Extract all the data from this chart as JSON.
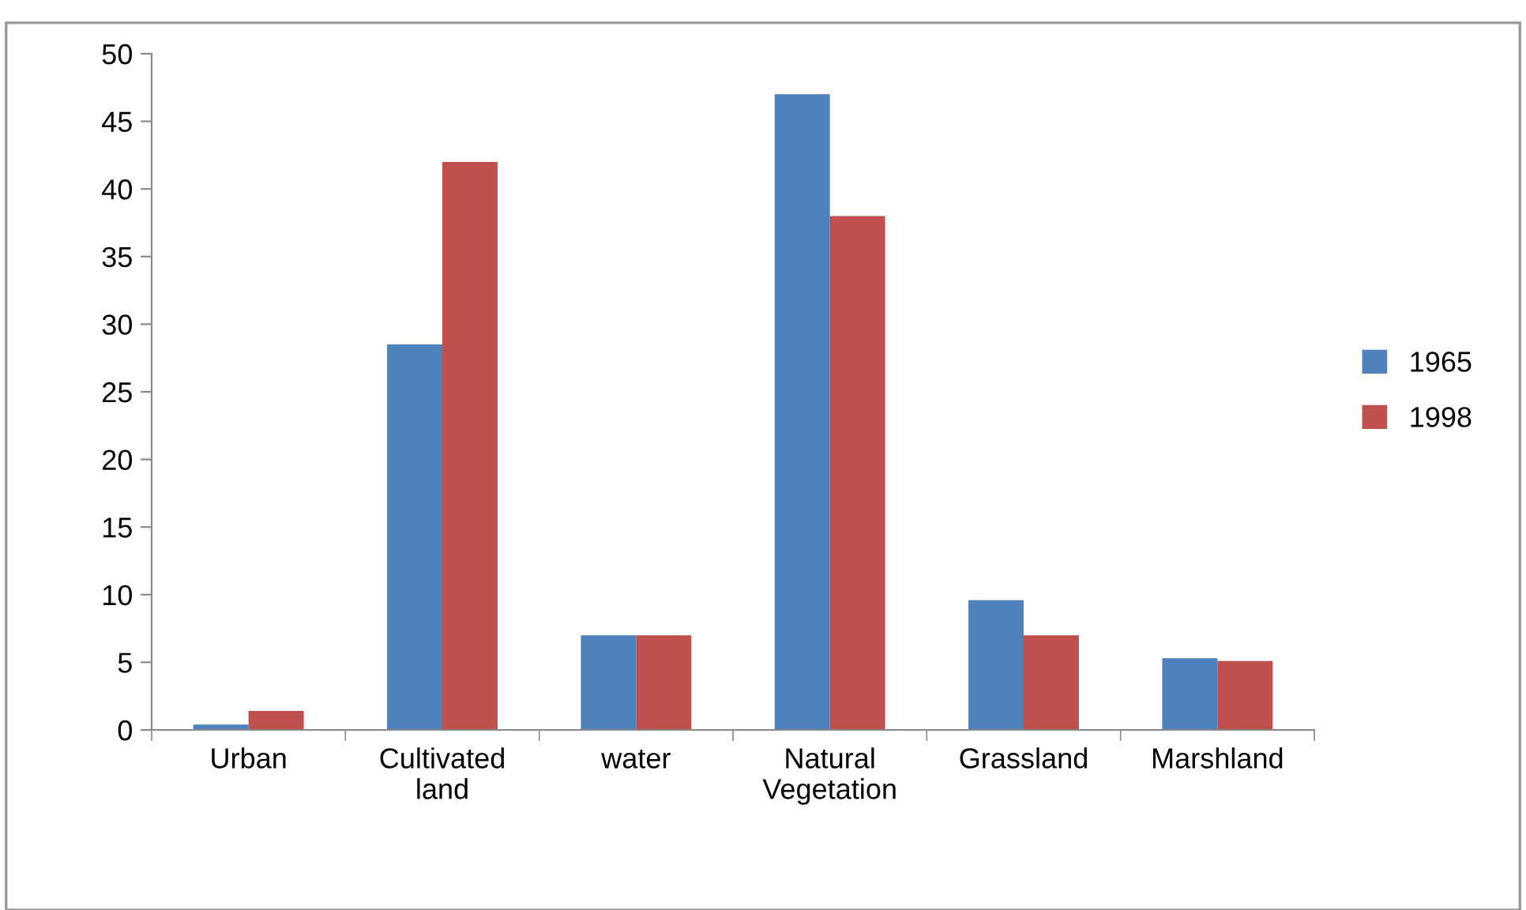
{
  "chart_data": {
    "type": "bar",
    "categories": [
      "Urban",
      "Cultivated\nland",
      "water",
      "Natural\nVegetation",
      "Grassland",
      "Marshland"
    ],
    "series": [
      {
        "name": "1965",
        "color": "#4f81bd",
        "values": [
          0.4,
          28.5,
          7,
          47,
          9.6,
          5.3
        ]
      },
      {
        "name": "1998",
        "color": "#c0504d",
        "values": [
          1.4,
          42,
          7,
          38,
          7,
          5.1
        ]
      }
    ],
    "ylim": [
      0,
      50
    ],
    "yticks": [
      0,
      5,
      10,
      15,
      20,
      25,
      30,
      35,
      40,
      45,
      50
    ],
    "grid": false,
    "legend": "right"
  }
}
